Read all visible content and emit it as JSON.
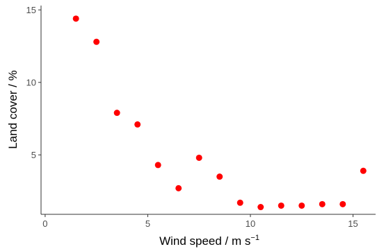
{
  "chart_data": {
    "type": "scatter",
    "title": "",
    "xlabel": "Wind speed / m s",
    "xlabel_superscript": "−1",
    "ylabel": "Land cover / %",
    "xlim": [
      -0.2,
      16.1
    ],
    "ylim": [
      0.9,
      15.3
    ],
    "xticks": [
      0,
      5,
      10,
      15
    ],
    "yticks": [
      5,
      10,
      15
    ],
    "grid": false,
    "legend": "none",
    "point_color": "#ff0000",
    "axis_color": "#333333",
    "x": [
      1.5,
      2.5,
      3.5,
      4.5,
      5.5,
      6.5,
      7.5,
      8.5,
      9.5,
      10.5,
      11.5,
      12.5,
      13.5,
      14.5,
      15.5
    ],
    "y": [
      14.4,
      12.8,
      7.9,
      7.1,
      4.3,
      2.7,
      4.8,
      3.5,
      1.7,
      1.4,
      1.5,
      1.5,
      1.6,
      1.6,
      3.9
    ]
  }
}
